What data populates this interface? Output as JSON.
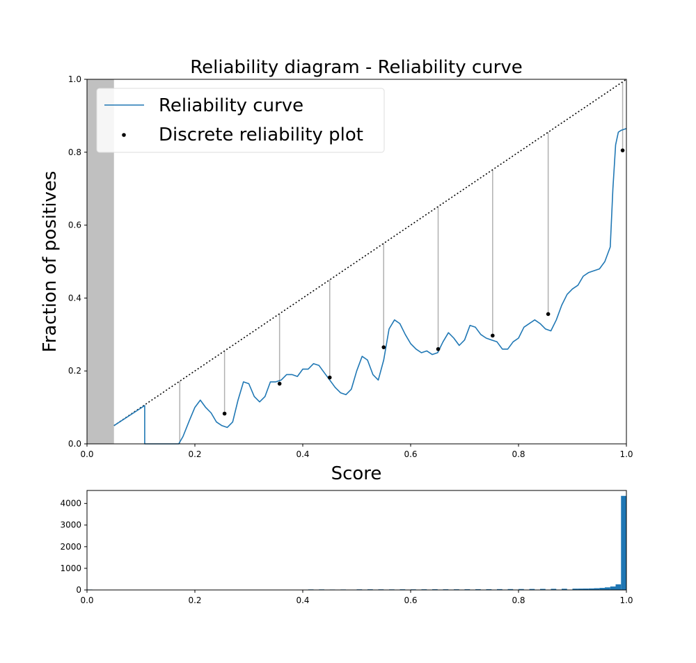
{
  "chart_data": [
    {
      "type": "line",
      "title": "Reliability diagram - Reliability curve",
      "xlabel": "Score",
      "ylabel": "Fraction of positives",
      "xlim": [
        0.0,
        1.0
      ],
      "ylim": [
        0.0,
        1.0
      ],
      "xticks": [
        "0.0",
        "0.2",
        "0.4",
        "0.6",
        "0.8",
        "1.0"
      ],
      "yticks": [
        "0.0",
        "0.2",
        "0.4",
        "0.6",
        "0.8",
        "1.0"
      ],
      "grid": false,
      "legend_position": "top-left",
      "shaded_region": {
        "x": [
          0.0,
          0.05
        ],
        "color": "#c0c0c0"
      },
      "diagonal": {
        "name": "perfect calibration",
        "x": [
          0.05,
          1.0
        ],
        "y": [
          0.05,
          1.0
        ],
        "style": "dotted",
        "color": "#000000"
      },
      "series": [
        {
          "name": "Reliability curve",
          "color": "#1f77b4",
          "x": [
            0.05,
            0.107,
            0.107,
            0.17,
            0.178,
            0.19,
            0.2,
            0.21,
            0.22,
            0.23,
            0.24,
            0.25,
            0.26,
            0.27,
            0.28,
            0.29,
            0.3,
            0.31,
            0.32,
            0.33,
            0.34,
            0.35,
            0.36,
            0.37,
            0.38,
            0.39,
            0.4,
            0.41,
            0.42,
            0.43,
            0.44,
            0.45,
            0.46,
            0.47,
            0.48,
            0.49,
            0.5,
            0.51,
            0.52,
            0.53,
            0.54,
            0.55,
            0.56,
            0.57,
            0.58,
            0.59,
            0.6,
            0.61,
            0.62,
            0.63,
            0.64,
            0.65,
            0.66,
            0.67,
            0.68,
            0.69,
            0.7,
            0.71,
            0.72,
            0.73,
            0.74,
            0.75,
            0.76,
            0.77,
            0.78,
            0.79,
            0.8,
            0.81,
            0.82,
            0.83,
            0.84,
            0.85,
            0.86,
            0.87,
            0.88,
            0.89,
            0.9,
            0.91,
            0.92,
            0.93,
            0.94,
            0.95,
            0.96,
            0.97,
            0.975,
            0.98,
            0.985,
            0.99,
            1.0
          ],
          "y": [
            0.05,
            0.105,
            0.0,
            0.0,
            0.02,
            0.065,
            0.1,
            0.12,
            0.1,
            0.085,
            0.06,
            0.05,
            0.045,
            0.06,
            0.12,
            0.17,
            0.165,
            0.13,
            0.115,
            0.13,
            0.17,
            0.17,
            0.175,
            0.19,
            0.19,
            0.185,
            0.205,
            0.205,
            0.22,
            0.215,
            0.195,
            0.175,
            0.155,
            0.14,
            0.135,
            0.15,
            0.2,
            0.24,
            0.23,
            0.19,
            0.175,
            0.23,
            0.315,
            0.34,
            0.33,
            0.3,
            0.275,
            0.26,
            0.25,
            0.255,
            0.245,
            0.25,
            0.28,
            0.305,
            0.29,
            0.27,
            0.285,
            0.325,
            0.32,
            0.3,
            0.29,
            0.285,
            0.28,
            0.26,
            0.26,
            0.28,
            0.29,
            0.32,
            0.33,
            0.34,
            0.33,
            0.315,
            0.31,
            0.34,
            0.38,
            0.41,
            0.425,
            0.435,
            0.46,
            0.47,
            0.475,
            0.48,
            0.5,
            0.54,
            0.7,
            0.82,
            0.855,
            0.86,
            0.865
          ]
        },
        {
          "name": "Discrete reliability plot",
          "type": "scatter",
          "color": "#000000",
          "x": [
            0.255,
            0.357,
            0.45,
            0.55,
            0.651,
            0.752,
            0.855,
            0.993
          ],
          "y": [
            0.083,
            0.165,
            0.182,
            0.265,
            0.26,
            0.297,
            0.356,
            0.805
          ]
        }
      ],
      "gap_lines": {
        "color": "#b0b0b0",
        "x": [
          0.172,
          0.255,
          0.357,
          0.45,
          0.55,
          0.651,
          0.752,
          0.855,
          0.993
        ],
        "y_top": [
          0.172,
          0.255,
          0.357,
          0.45,
          0.55,
          0.651,
          0.752,
          0.855,
          0.993
        ],
        "y_bottom": [
          0.0,
          0.083,
          0.165,
          0.182,
          0.265,
          0.26,
          0.297,
          0.356,
          0.805
        ]
      }
    },
    {
      "type": "bar",
      "title": "",
      "xlabel": "",
      "ylabel": "",
      "xlim": [
        0.0,
        1.0
      ],
      "ylim": [
        0,
        4600
      ],
      "xticks": [
        "0.0",
        "0.2",
        "0.4",
        "0.6",
        "0.8",
        "1.0"
      ],
      "yticks": [
        "0",
        "1000",
        "2000",
        "3000",
        "4000"
      ],
      "color": "#1f77b4",
      "bin_width": 0.01,
      "bins": [
        0.0,
        0.41,
        0.43,
        0.45,
        0.47,
        0.5,
        0.52,
        0.54,
        0.56,
        0.58,
        0.6,
        0.62,
        0.64,
        0.66,
        0.68,
        0.7,
        0.72,
        0.74,
        0.76,
        0.78,
        0.8,
        0.82,
        0.84,
        0.86,
        0.88,
        0.9,
        0.91,
        0.92,
        0.93,
        0.94,
        0.95,
        0.96,
        0.97,
        0.98,
        0.99
      ],
      "values": [
        20,
        25,
        25,
        20,
        22,
        28,
        30,
        28,
        26,
        30,
        28,
        30,
        32,
        30,
        30,
        32,
        35,
        35,
        38,
        40,
        42,
        45,
        48,
        52,
        55,
        60,
        62,
        65,
        70,
        80,
        95,
        120,
        160,
        260,
        4350
      ]
    }
  ]
}
